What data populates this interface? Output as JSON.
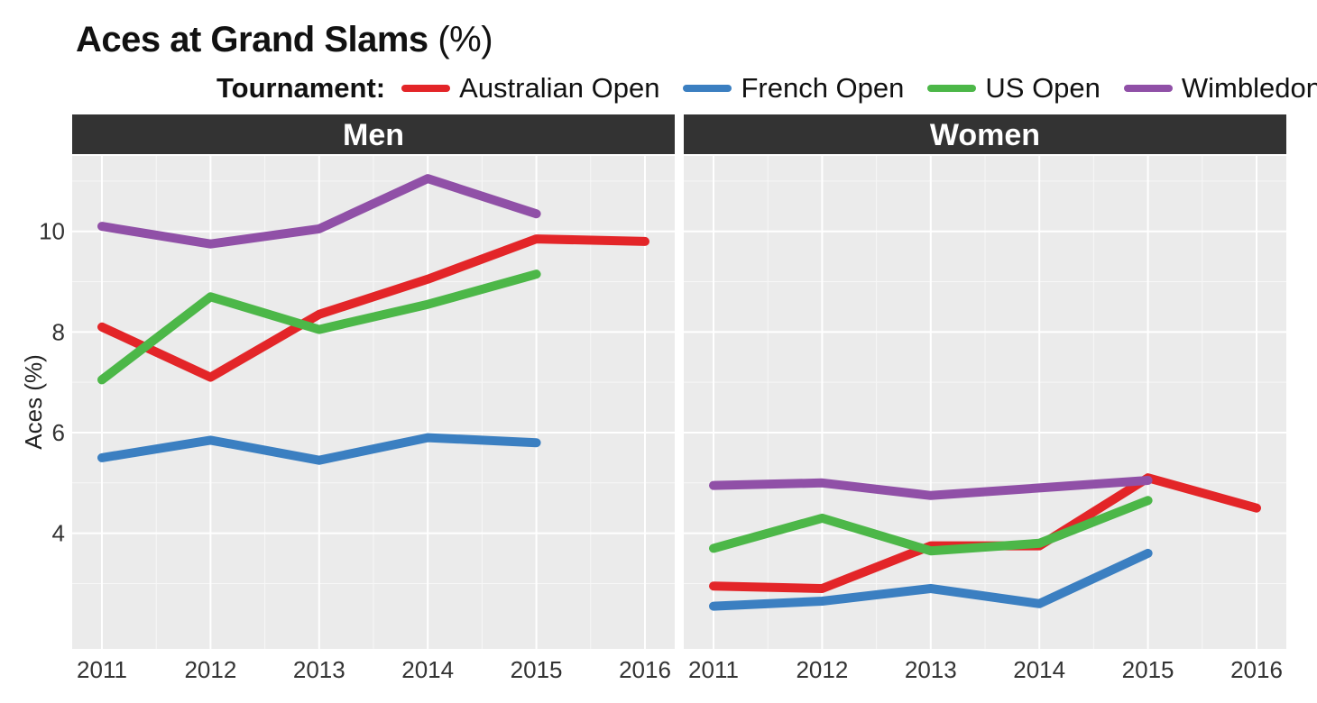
{
  "title": {
    "main": "Aces at Grand Slams",
    "unit": "(%)"
  },
  "legend": {
    "title": "Tournament:",
    "items": [
      {
        "key": "ao",
        "label": "Australian Open",
        "color": "#e32528"
      },
      {
        "key": "fo",
        "label": "French Open",
        "color": "#3b7fc1"
      },
      {
        "key": "uso",
        "label": "US Open",
        "color": "#4cb748"
      },
      {
        "key": "wim",
        "label": "Wimbledon",
        "color": "#9050a7"
      }
    ]
  },
  "chart_data": {
    "type": "line",
    "title": "Aces at Grand Slams (%)",
    "xlabel": "",
    "ylabel": "Aces (%)",
    "x": [
      2011,
      2012,
      2013,
      2014,
      2015,
      2016
    ],
    "ylim": [
      1.7,
      11.5
    ],
    "yticks": [
      4,
      6,
      8,
      10
    ],
    "grid": true,
    "legend_position": "top",
    "panels": [
      {
        "name": "Men",
        "series": [
          {
            "name": "Australian Open",
            "values": [
              8.1,
              7.1,
              8.35,
              9.05,
              9.85,
              9.8
            ]
          },
          {
            "name": "French Open",
            "values": [
              5.5,
              5.85,
              5.45,
              5.9,
              5.8,
              null
            ]
          },
          {
            "name": "US Open",
            "values": [
              7.05,
              8.7,
              8.05,
              8.55,
              9.15,
              null
            ]
          },
          {
            "name": "Wimbledon",
            "values": [
              10.1,
              9.75,
              10.05,
              11.05,
              10.35,
              null
            ]
          }
        ]
      },
      {
        "name": "Women",
        "series": [
          {
            "name": "Australian Open",
            "values": [
              2.95,
              2.9,
              3.75,
              3.75,
              5.1,
              4.5
            ]
          },
          {
            "name": "French Open",
            "values": [
              2.55,
              2.65,
              2.9,
              2.6,
              3.6,
              null
            ]
          },
          {
            "name": "US Open",
            "values": [
              3.7,
              4.3,
              3.65,
              3.8,
              4.65,
              null
            ]
          },
          {
            "name": "Wimbledon",
            "values": [
              4.95,
              5.0,
              4.75,
              4.9,
              5.05,
              null
            ]
          }
        ]
      }
    ]
  }
}
